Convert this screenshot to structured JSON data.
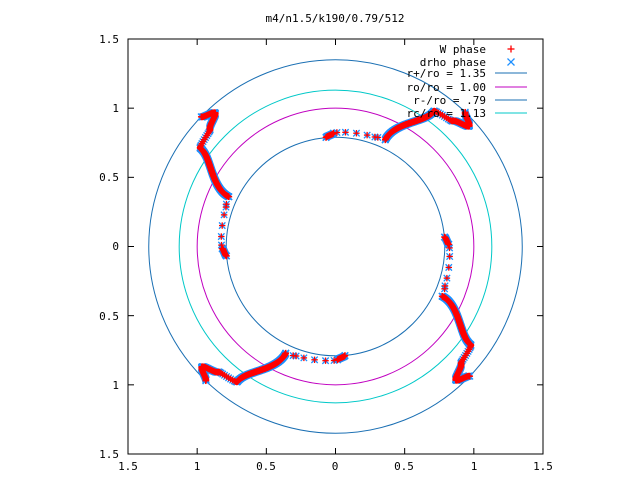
{
  "chart_data": {
    "type": "scatter",
    "title": "m4/n1.5/k190/0.79/512",
    "xlabel": "",
    "ylabel": "",
    "xlim": [
      -1.5,
      1.5
    ],
    "ylim": [
      -1.5,
      1.5
    ],
    "x_tick_labels": [
      "1.5",
      "1",
      "0.5",
      "0",
      "0.5",
      "1",
      "1.5"
    ],
    "y_tick_labels": [
      "1.5",
      "1",
      "0.5",
      "0",
      "0.5",
      "1",
      "1.5"
    ],
    "grid": false,
    "legend_position": "top-right",
    "circles": [
      {
        "label": "r+/ro = 1.35",
        "radius": 1.35,
        "color": "#1a6fb3"
      },
      {
        "label": "ro/ro = 1.00",
        "radius": 1.0,
        "color": "#c000c0"
      },
      {
        "label": "r-/ro = .79",
        "radius": 0.79,
        "color": "#1a6fb3"
      },
      {
        "label": "rc/ro = 1.13",
        "radius": 1.13,
        "color": "#00c8c8"
      }
    ],
    "series": [
      {
        "name": "W phase",
        "marker": "+",
        "color": "#ff0000"
      },
      {
        "name": "drho phase",
        "marker": "x",
        "color": "#1e90ff"
      }
    ],
    "curve_model": {
      "arms": 4,
      "phase_offset_deg": 95,
      "segments": [
        {
          "r_start": 0.79,
          "r_end": 0.82,
          "dtheta_deg": -4
        },
        {
          "r_start": 0.82,
          "r_end": 0.845,
          "dtheta_deg": -22
        },
        {
          "r_start": 0.845,
          "r_end": 0.85,
          "dtheta_deg": -4
        },
        {
          "r_start": 0.85,
          "r_end": 1.21,
          "dtheta_deg": -11
        },
        {
          "r_start": 1.21,
          "r_end": 1.24,
          "dtheta_deg": -7
        },
        {
          "r_start": 1.24,
          "r_end": 1.3,
          "dtheta_deg": -5
        },
        {
          "r_start": 1.3,
          "r_end": 1.35,
          "dtheta_deg": 4
        }
      ],
      "sparse_radius_range": [
        0.82,
        0.85
      ]
    }
  }
}
